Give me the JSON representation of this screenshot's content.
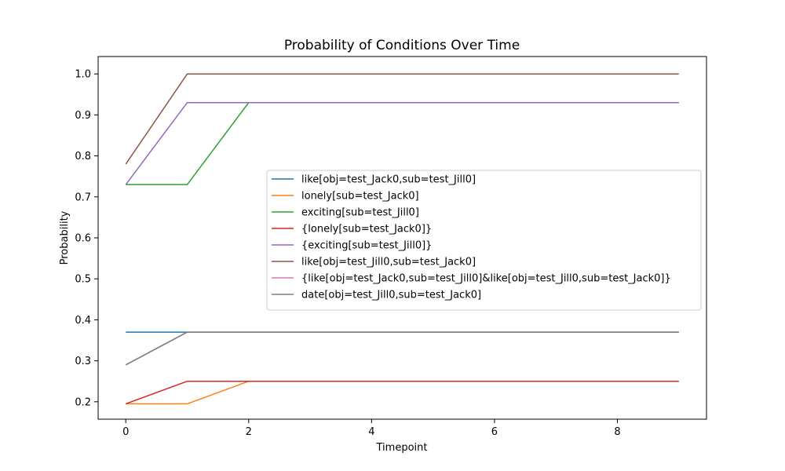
{
  "chart_data": {
    "type": "line",
    "title": "Probability of Conditions Over Time",
    "xlabel": "Timepoint",
    "ylabel": "Probability",
    "xlim": [
      -0.45,
      9.45
    ],
    "ylim": [
      0.1575,
      1.0425
    ],
    "x_ticks": [
      0,
      2,
      4,
      6,
      8
    ],
    "y_ticks": [
      0.2,
      0.3,
      0.4,
      0.5,
      0.6,
      0.7,
      0.8,
      0.9,
      1.0
    ],
    "x_tick_labels": [
      "0",
      "2",
      "4",
      "6",
      "8"
    ],
    "y_tick_labels": [
      "0.2",
      "0.3",
      "0.4",
      "0.5",
      "0.6",
      "0.7",
      "0.8",
      "0.9",
      "1.0"
    ],
    "grid": false,
    "legend_position": "center-right",
    "x": [
      0,
      1,
      2,
      3,
      4,
      5,
      6,
      7,
      8,
      9
    ],
    "series": [
      {
        "name": "like[obj=test_Jack0,sub=test_Jill0]",
        "color": "#1f77b4",
        "values": [
          0.37,
          0.37,
          0.37,
          0.37,
          0.37,
          0.37,
          0.37,
          0.37,
          0.37,
          0.37
        ]
      },
      {
        "name": "lonely[sub=test_Jack0]",
        "color": "#ff7f0e",
        "values": [
          0.195,
          0.195,
          0.25,
          0.25,
          0.25,
          0.25,
          0.25,
          0.25,
          0.25,
          0.25
        ]
      },
      {
        "name": "exciting[sub=test_Jill0]",
        "color": "#2ca02c",
        "values": [
          0.73,
          0.73,
          0.93,
          0.93,
          0.93,
          0.93,
          0.93,
          0.93,
          0.93,
          0.93
        ]
      },
      {
        "name": "{lonely[sub=test_Jack0]}",
        "color": "#d62728",
        "values": [
          0.195,
          0.25,
          0.25,
          0.25,
          0.25,
          0.25,
          0.25,
          0.25,
          0.25,
          0.25
        ]
      },
      {
        "name": "{exciting[sub=test_Jill0]}",
        "color": "#9467bd",
        "values": [
          0.73,
          0.93,
          0.93,
          0.93,
          0.93,
          0.93,
          0.93,
          0.93,
          0.93,
          0.93
        ]
      },
      {
        "name": "like[obj=test_Jill0,sub=test_Jack0]",
        "color": "#8c564b",
        "values": [
          0.78,
          1.0,
          1.0,
          1.0,
          1.0,
          1.0,
          1.0,
          1.0,
          1.0,
          1.0
        ]
      },
      {
        "name": "{like[obj=test_Jack0,sub=test_Jill0]&like[obj=test_Jill0,sub=test_Jack0]}",
        "color": "#e377c2",
        "values": [
          0.29,
          0.37,
          0.37,
          0.37,
          0.37,
          0.37,
          0.37,
          0.37,
          0.37,
          0.37
        ]
      },
      {
        "name": "date[obj=test_Jill0,sub=test_Jack0]",
        "color": "#7f7f7f",
        "values": [
          0.29,
          0.37,
          0.37,
          0.37,
          0.37,
          0.37,
          0.37,
          0.37,
          0.37,
          0.37
        ]
      }
    ]
  }
}
